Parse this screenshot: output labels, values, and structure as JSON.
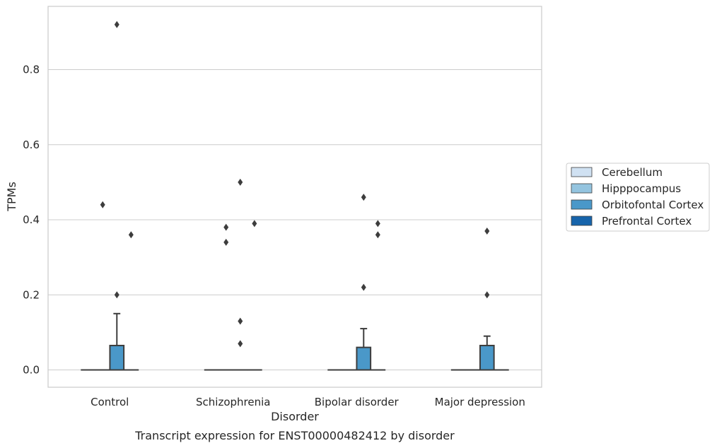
{
  "chart_data": {
    "type": "box",
    "caption": "Transcript expression for ENST00000482412 by disorder",
    "xlabel": "Disorder",
    "ylabel": "TPMs",
    "ylim": [
      -0.045,
      0.965
    ],
    "yticks": [
      0.0,
      0.2,
      0.4,
      0.6,
      0.8
    ],
    "ytick_labels": [
      "0.0",
      "0.2",
      "0.4",
      "0.6",
      "0.8"
    ],
    "grid": "horizontal",
    "legend_position": "right",
    "categories": [
      "Control",
      "Schizophrenia",
      "Bipolar disorder",
      "Major depression"
    ],
    "series": [
      {
        "name": "Cerebellum",
        "color": "#d0e1f2",
        "boxes": [
          {
            "q1": 0,
            "median": 0,
            "q3": 0,
            "whisker_low": 0,
            "whisker_high": 0,
            "outliers": []
          },
          {
            "q1": 0,
            "median": 0,
            "q3": 0,
            "whisker_low": 0,
            "whisker_high": 0,
            "outliers": []
          },
          {
            "q1": 0,
            "median": 0,
            "q3": 0,
            "whisker_low": 0,
            "whisker_high": 0,
            "outliers": []
          },
          {
            "q1": 0,
            "median": 0,
            "q3": 0,
            "whisker_low": 0,
            "whisker_high": 0,
            "outliers": []
          }
        ]
      },
      {
        "name": "Hipppocampus",
        "color": "#94c4df",
        "boxes": [
          {
            "q1": 0,
            "median": 0,
            "q3": 0,
            "whisker_low": 0,
            "whisker_high": 0,
            "outliers": [
              0.44
            ]
          },
          {
            "q1": 0,
            "median": 0,
            "q3": 0,
            "whisker_low": 0,
            "whisker_high": 0,
            "outliers": [
              0.38,
              0.34
            ]
          },
          {
            "q1": 0,
            "median": 0,
            "q3": 0,
            "whisker_low": 0,
            "whisker_high": 0,
            "outliers": []
          },
          {
            "q1": 0,
            "median": 0,
            "q3": 0,
            "whisker_low": 0,
            "whisker_high": 0,
            "outliers": []
          }
        ]
      },
      {
        "name": "Orbitofontal Cortex",
        "color": "#4a98c9",
        "boxes": [
          {
            "q1": 0,
            "median": 0,
            "q3": 0.065,
            "whisker_low": 0,
            "whisker_high": 0.15,
            "outliers": [
              0.92,
              0.2
            ]
          },
          {
            "q1": 0,
            "median": 0,
            "q3": 0,
            "whisker_low": 0,
            "whisker_high": 0,
            "outliers": [
              0.5,
              0.13,
              0.07
            ]
          },
          {
            "q1": 0,
            "median": 0,
            "q3": 0.06,
            "whisker_low": 0,
            "whisker_high": 0.11,
            "outliers": [
              0.22,
              0.46
            ]
          },
          {
            "q1": 0,
            "median": 0,
            "q3": 0.065,
            "whisker_low": 0,
            "whisker_high": 0.09,
            "outliers": [
              0.37,
              0.2
            ]
          }
        ]
      },
      {
        "name": "Prefrontal Cortex",
        "color": "#1764ab",
        "boxes": [
          {
            "q1": 0,
            "median": 0,
            "q3": 0,
            "whisker_low": 0,
            "whisker_high": 0,
            "outliers": [
              0.36
            ]
          },
          {
            "q1": 0,
            "median": 0,
            "q3": 0,
            "whisker_low": 0,
            "whisker_high": 0,
            "outliers": [
              0.39
            ]
          },
          {
            "q1": 0,
            "median": 0,
            "q3": 0,
            "whisker_low": 0,
            "whisker_high": 0,
            "outliers": [
              0.39,
              0.36
            ]
          },
          {
            "q1": 0,
            "median": 0,
            "q3": 0,
            "whisker_low": 0,
            "whisker_high": 0,
            "outliers": []
          }
        ]
      }
    ]
  }
}
